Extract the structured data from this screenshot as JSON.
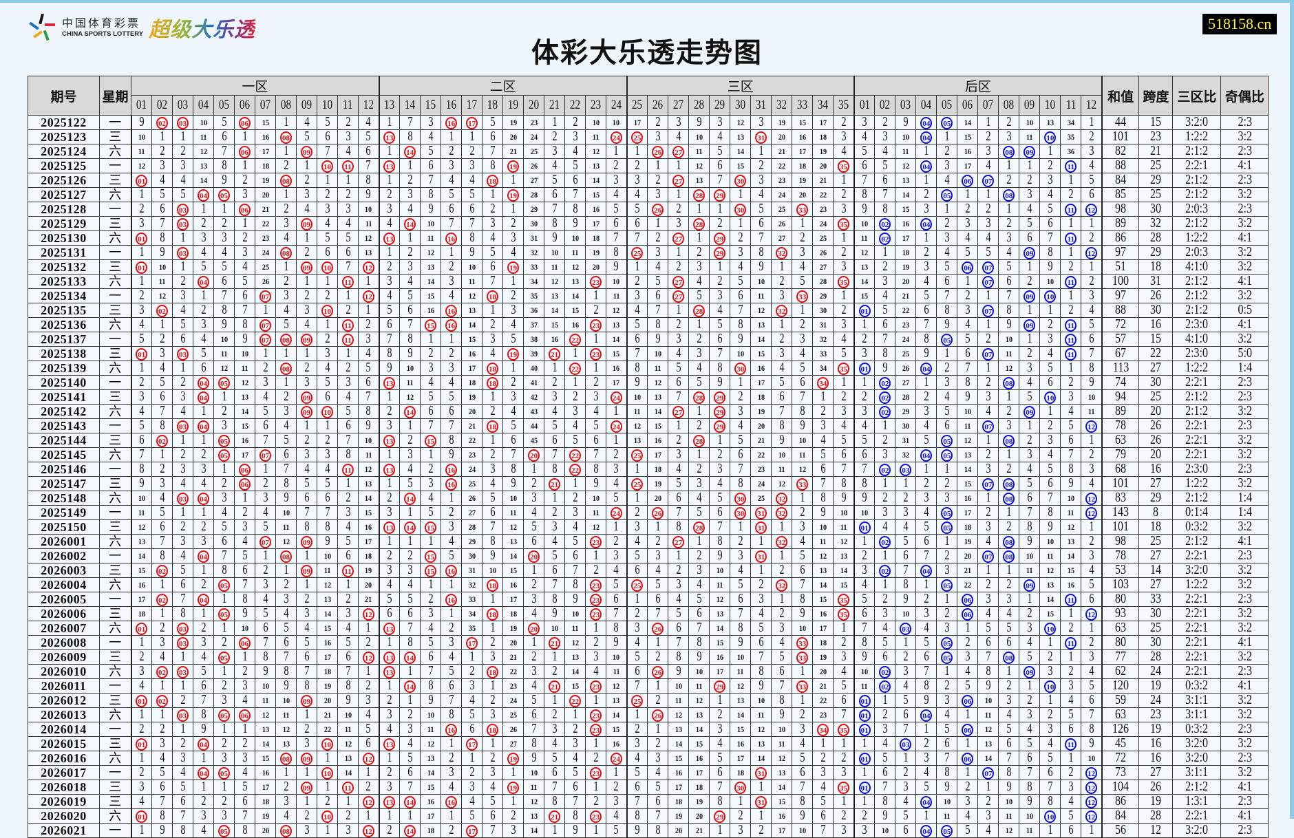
{
  "logo": {
    "cn_name": "中国体育彩票",
    "en_name": "CHINA SPORTS LOTTERY",
    "brand": "超级大乐透"
  },
  "site_badge": "518158.cn",
  "title": "体彩大乐透走势图",
  "header": {
    "period": "期号",
    "weekday": "星期",
    "zones": [
      "一区",
      "二区",
      "三区",
      "后区"
    ],
    "sum": "和值",
    "span": "跨度",
    "zone_ratio": "三区比",
    "odd_even": "奇偶比",
    "front_numbers": [
      "01",
      "02",
      "03",
      "04",
      "05",
      "06",
      "07",
      "08",
      "09",
      "10",
      "11",
      "12",
      "13",
      "14",
      "15",
      "16",
      "17",
      "18",
      "19",
      "20",
      "21",
      "22",
      "23",
      "24",
      "25",
      "26",
      "27",
      "28",
      "29",
      "30",
      "31",
      "32",
      "33",
      "34",
      "35"
    ],
    "back_numbers": [
      "01",
      "02",
      "03",
      "04",
      "05",
      "06",
      "07",
      "08",
      "09",
      "10",
      "11",
      "12"
    ]
  },
  "colors": {
    "front_ball": "#e01010",
    "back_ball": "#1010d8",
    "header_bg": "#d9d9d9",
    "badge_bg": "#000000",
    "badge_text": "#ffef3a"
  },
  "first_row_omissions": {
    "front": [
      9,
      null,
      null,
      10,
      5,
      null,
      15,
      1,
      4,
      5,
      2,
      4,
      1,
      7,
      3,
      null,
      null,
      5,
      19,
      23,
      1,
      2,
      10,
      10,
      17,
      2,
      3,
      9,
      3,
      12,
      3,
      19,
      15,
      17,
      2
    ],
    "back": [
      3,
      2,
      9,
      null,
      null,
      14,
      1,
      2,
      10,
      13,
      34,
      1
    ]
  },
  "rows": [
    {
      "period": "2025122",
      "weekday": "一",
      "front": [
        2,
        3,
        6,
        16,
        17
      ],
      "back": [
        4,
        5
      ],
      "sum": "44",
      "span": "15",
      "zone_ratio": "3:2:0",
      "odd_even": "2:3"
    },
    {
      "period": "2025123",
      "weekday": "三",
      "front": [
        8,
        13,
        24,
        25,
        31
      ],
      "back": [
        4,
        10
      ],
      "sum": "101",
      "span": "23",
      "zone_ratio": "1:2:2",
      "odd_even": "3:2"
    },
    {
      "period": "2025124",
      "weekday": "六",
      "front": [
        6,
        9,
        14,
        26,
        27
      ],
      "back": [
        8,
        9
      ],
      "sum": "82",
      "span": "21",
      "zone_ratio": "2:1:2",
      "odd_even": "2:3"
    },
    {
      "period": "2025125",
      "weekday": "一",
      "front": [
        10,
        11,
        13,
        19,
        35
      ],
      "back": [
        4,
        11
      ],
      "sum": "88",
      "span": "25",
      "zone_ratio": "2:2:1",
      "odd_even": "4:1"
    },
    {
      "period": "2025126",
      "weekday": "三",
      "front": [
        1,
        8,
        18,
        27,
        30
      ],
      "back": [
        6,
        7
      ],
      "sum": "84",
      "span": "29",
      "zone_ratio": "2:1:2",
      "odd_even": "2:3"
    },
    {
      "period": "2025127",
      "weekday": "六",
      "front": [
        4,
        5,
        19,
        28,
        29
      ],
      "back": [
        5,
        8
      ],
      "sum": "85",
      "span": "25",
      "zone_ratio": "2:1:2",
      "odd_even": "3:2"
    },
    {
      "period": "2025128",
      "weekday": "一",
      "front": [
        3,
        6,
        26,
        30,
        33
      ],
      "back": [
        11,
        12
      ],
      "sum": "98",
      "span": "30",
      "zone_ratio": "2:0:3",
      "odd_even": "2:3"
    },
    {
      "period": "2025129",
      "weekday": "三",
      "front": [
        3,
        9,
        14,
        28,
        35
      ],
      "back": [
        2,
        4
      ],
      "sum": "89",
      "span": "32",
      "zone_ratio": "2:1:2",
      "odd_even": "3:2"
    },
    {
      "period": "2025130",
      "weekday": "六",
      "front": [
        1,
        13,
        16,
        27,
        29
      ],
      "back": [
        2,
        11
      ],
      "sum": "86",
      "span": "28",
      "zone_ratio": "1:2:2",
      "odd_even": "4:1"
    },
    {
      "period": "2025131",
      "weekday": "一",
      "front": [
        3,
        8,
        25,
        29,
        32
      ],
      "back": [
        9,
        12
      ],
      "sum": "97",
      "span": "29",
      "zone_ratio": "2:0:3",
      "odd_even": "3:2"
    },
    {
      "period": "2025132",
      "weekday": "三",
      "front": [
        1,
        9,
        10,
        12,
        19
      ],
      "back": [
        6,
        7
      ],
      "sum": "51",
      "span": "18",
      "zone_ratio": "4:1:0",
      "odd_even": "3:2"
    },
    {
      "period": "2025133",
      "weekday": "六",
      "front": [
        4,
        11,
        23,
        27,
        35
      ],
      "back": [
        7,
        11
      ],
      "sum": "100",
      "span": "31",
      "zone_ratio": "2:1:2",
      "odd_even": "4:1"
    },
    {
      "period": "2025134",
      "weekday": "一",
      "front": [
        7,
        12,
        18,
        27,
        33
      ],
      "back": [
        9,
        10
      ],
      "sum": "97",
      "span": "26",
      "zone_ratio": "2:1:2",
      "odd_even": "3:2"
    },
    {
      "period": "2025135",
      "weekday": "三",
      "front": [
        2,
        10,
        16,
        28,
        32
      ],
      "back": [
        1,
        7
      ],
      "sum": "88",
      "span": "30",
      "zone_ratio": "2:1:2",
      "odd_even": "0:5"
    },
    {
      "period": "2025136",
      "weekday": "六",
      "front": [
        7,
        11,
        15,
        16,
        23
      ],
      "back": [
        9,
        11
      ],
      "sum": "72",
      "span": "16",
      "zone_ratio": "2:3:0",
      "odd_even": "4:1"
    },
    {
      "period": "2025137",
      "weekday": "一",
      "front": [
        7,
        8,
        9,
        11,
        22
      ],
      "back": [
        5,
        11
      ],
      "sum": "57",
      "span": "15",
      "zone_ratio": "4:1:0",
      "odd_even": "3:2"
    },
    {
      "period": "2025138",
      "weekday": "三",
      "front": [
        1,
        3,
        19,
        21,
        23
      ],
      "back": [
        7,
        11
      ],
      "sum": "67",
      "span": "22",
      "zone_ratio": "2:3:0",
      "odd_even": "5:0"
    },
    {
      "period": "2025139",
      "weekday": "六",
      "front": [
        8,
        18,
        22,
        30,
        35
      ],
      "back": [
        1,
        4
      ],
      "sum": "113",
      "span": "27",
      "zone_ratio": "1:2:2",
      "odd_even": "1:4"
    },
    {
      "period": "2025140",
      "weekday": "一",
      "front": [
        4,
        5,
        13,
        18,
        34
      ],
      "back": [
        2,
        8
      ],
      "sum": "74",
      "span": "30",
      "zone_ratio": "2:2:1",
      "odd_even": "2:3"
    },
    {
      "period": "2025141",
      "weekday": "三",
      "front": [
        4,
        9,
        24,
        28,
        29
      ],
      "back": [
        2,
        10
      ],
      "sum": "94",
      "span": "25",
      "zone_ratio": "2:1:2",
      "odd_even": "2:3"
    },
    {
      "period": "2025142",
      "weekday": "六",
      "front": [
        9,
        10,
        14,
        27,
        29
      ],
      "back": [
        2,
        9
      ],
      "sum": "89",
      "span": "20",
      "zone_ratio": "2:1:2",
      "odd_even": "3:2"
    },
    {
      "period": "2025143",
      "weekday": "一",
      "front": [
        3,
        4,
        18,
        24,
        29
      ],
      "back": [
        7,
        12
      ],
      "sum": "78",
      "span": "26",
      "zone_ratio": "2:2:1",
      "odd_even": "2:3"
    },
    {
      "period": "2025144",
      "weekday": "三",
      "front": [
        2,
        5,
        13,
        15,
        28
      ],
      "back": [
        5,
        8
      ],
      "sum": "63",
      "span": "26",
      "zone_ratio": "2:2:1",
      "odd_even": "3:2"
    },
    {
      "period": "2025145",
      "weekday": "六",
      "front": [
        5,
        7,
        20,
        22,
        25
      ],
      "back": [
        4,
        5
      ],
      "sum": "79",
      "span": "20",
      "zone_ratio": "2:2:1",
      "odd_even": "3:2"
    },
    {
      "period": "2025146",
      "weekday": "一",
      "front": [
        6,
        11,
        13,
        16,
        22
      ],
      "back": [
        2,
        3
      ],
      "sum": "68",
      "span": "16",
      "zone_ratio": "2:3:0",
      "odd_even": "2:3"
    },
    {
      "period": "2025147",
      "weekday": "三",
      "front": [
        6,
        16,
        21,
        25,
        33
      ],
      "back": [
        7,
        8
      ],
      "sum": "101",
      "span": "27",
      "zone_ratio": "1:2:2",
      "odd_even": "3:2"
    },
    {
      "period": "2025148",
      "weekday": "六",
      "front": [
        3,
        4,
        14,
        30,
        32
      ],
      "back": [
        8,
        12
      ],
      "sum": "83",
      "span": "29",
      "zone_ratio": "2:1:2",
      "odd_even": "1:4"
    },
    {
      "period": "2025149",
      "weekday": "一",
      "front": [
        24,
        26,
        30,
        31,
        32
      ],
      "back": [
        5,
        12
      ],
      "sum": "143",
      "span": "8",
      "zone_ratio": "0:1:4",
      "odd_even": "1:4"
    },
    {
      "period": "2025150",
      "weekday": "三",
      "front": [
        13,
        14,
        15,
        28,
        31
      ],
      "back": [
        1,
        5
      ],
      "sum": "101",
      "span": "18",
      "zone_ratio": "0:3:2",
      "odd_even": "3:2"
    },
    {
      "period": "2026001",
      "weekday": "六",
      "front": [
        7,
        9,
        23,
        27,
        32
      ],
      "back": [
        2,
        8
      ],
      "sum": "98",
      "span": "25",
      "zone_ratio": "2:1:2",
      "odd_even": "4:1"
    },
    {
      "period": "2026002",
      "weekday": "一",
      "front": [
        4,
        8,
        15,
        20,
        31
      ],
      "back": [
        7,
        8
      ],
      "sum": "78",
      "span": "27",
      "zone_ratio": "2:2:1",
      "odd_even": "2:3"
    },
    {
      "period": "2026003",
      "weekday": "三",
      "front": [
        2,
        9,
        11,
        15,
        16
      ],
      "back": [
        2,
        4
      ],
      "sum": "53",
      "span": "14",
      "zone_ratio": "3:2:0",
      "odd_even": "3:2"
    },
    {
      "period": "2026004",
      "weekday": "六",
      "front": [
        5,
        18,
        23,
        25,
        32
      ],
      "back": [
        5,
        9
      ],
      "sum": "103",
      "span": "27",
      "zone_ratio": "1:2:2",
      "odd_even": "3:2"
    },
    {
      "period": "2026005",
      "weekday": "一",
      "front": [
        2,
        4,
        16,
        23,
        35
      ],
      "back": [
        6,
        11
      ],
      "sum": "80",
      "span": "33",
      "zone_ratio": "2:2:1",
      "odd_even": "2:3"
    },
    {
      "period": "2026006",
      "weekday": "三",
      "front": [
        5,
        12,
        18,
        23,
        35
      ],
      "back": [
        6,
        12
      ],
      "sum": "93",
      "span": "30",
      "zone_ratio": "2:2:1",
      "odd_even": "3:2"
    },
    {
      "period": "2026007",
      "weekday": "六",
      "front": [
        1,
        3,
        13,
        20,
        26
      ],
      "back": [
        3,
        10
      ],
      "sum": "63",
      "span": "25",
      "zone_ratio": "2:2:1",
      "odd_even": "3:2"
    },
    {
      "period": "2026008",
      "weekday": "一",
      "front": [
        3,
        6,
        17,
        21,
        33
      ],
      "back": [
        5,
        11
      ],
      "sum": "80",
      "span": "30",
      "zone_ratio": "2:2:1",
      "odd_even": "4:1"
    },
    {
      "period": "2026009",
      "weekday": "三",
      "front": [
        5,
        12,
        13,
        14,
        33
      ],
      "back": [
        5,
        8
      ],
      "sum": "77",
      "span": "28",
      "zone_ratio": "2:2:1",
      "odd_even": "3:2"
    },
    {
      "period": "2026010",
      "weekday": "六",
      "front": [
        2,
        3,
        13,
        18,
        26
      ],
      "back": [
        2,
        9
      ],
      "sum": "62",
      "span": "24",
      "zone_ratio": "2:2:1",
      "odd_even": "2:3"
    },
    {
      "period": "2026011",
      "weekday": "一",
      "front": [
        14,
        21,
        23,
        29,
        33
      ],
      "back": [
        2,
        10
      ],
      "sum": "120",
      "span": "19",
      "zone_ratio": "0:3:2",
      "odd_even": "4:1"
    },
    {
      "period": "2026012",
      "weekday": "三",
      "front": [
        1,
        2,
        9,
        22,
        25
      ],
      "back": [
        1,
        6
      ],
      "sum": "59",
      "span": "24",
      "zone_ratio": "3:1:1",
      "odd_even": "3:2"
    },
    {
      "period": "2026013",
      "weekday": "六",
      "front": [
        3,
        5,
        6,
        23,
        26
      ],
      "back": [
        1,
        4
      ],
      "sum": "63",
      "span": "23",
      "zone_ratio": "3:1:1",
      "odd_even": "3:2"
    },
    {
      "period": "2026014",
      "weekday": "一",
      "front": [
        16,
        18,
        23,
        34,
        35
      ],
      "back": [
        1,
        6
      ],
      "sum": "126",
      "span": "19",
      "zone_ratio": "0:3:2",
      "odd_even": "2:3"
    },
    {
      "period": "2026015",
      "weekday": "三",
      "front": [
        1,
        4,
        10,
        13,
        17
      ],
      "back": [
        3,
        11
      ],
      "sum": "45",
      "span": "16",
      "zone_ratio": "3:2:0",
      "odd_even": "3:2"
    },
    {
      "period": "2026016",
      "weekday": "六",
      "front": [
        8,
        9,
        12,
        19,
        24
      ],
      "back": [
        1,
        6
      ],
      "sum": "72",
      "span": "16",
      "zone_ratio": "3:2:0",
      "odd_even": "2:3"
    },
    {
      "period": "2026017",
      "weekday": "一",
      "front": [
        4,
        5,
        10,
        23,
        31
      ],
      "back": [
        7,
        12
      ],
      "sum": "73",
      "span": "27",
      "zone_ratio": "3:1:1",
      "odd_even": "3:2"
    },
    {
      "period": "2026018",
      "weekday": "三",
      "front": [
        9,
        11,
        19,
        30,
        35
      ],
      "back": [
        1,
        12
      ],
      "sum": "104",
      "span": "26",
      "zone_ratio": "2:1:2",
      "odd_even": "4:1"
    },
    {
      "period": "2026019",
      "weekday": "三",
      "front": [
        12,
        13,
        14,
        16,
        31
      ],
      "back": [
        4,
        12
      ],
      "sum": "86",
      "span": "19",
      "zone_ratio": "1:3:1",
      "odd_even": "2:3"
    },
    {
      "period": "2026020",
      "weekday": "六",
      "front": [
        1,
        10,
        21,
        23,
        29
      ],
      "back": [
        10,
        12
      ],
      "sum": "84",
      "span": "28",
      "zone_ratio": "2:2:1",
      "odd_even": "4:1"
    },
    {
      "period": "2026021",
      "weekday": "一",
      "front": [
        5,
        8,
        12,
        14,
        17
      ],
      "back": [
        4,
        5
      ],
      "sum": "56",
      "span": "12",
      "zone_ratio": "3:2:0",
      "odd_even": "2:3"
    }
  ]
}
